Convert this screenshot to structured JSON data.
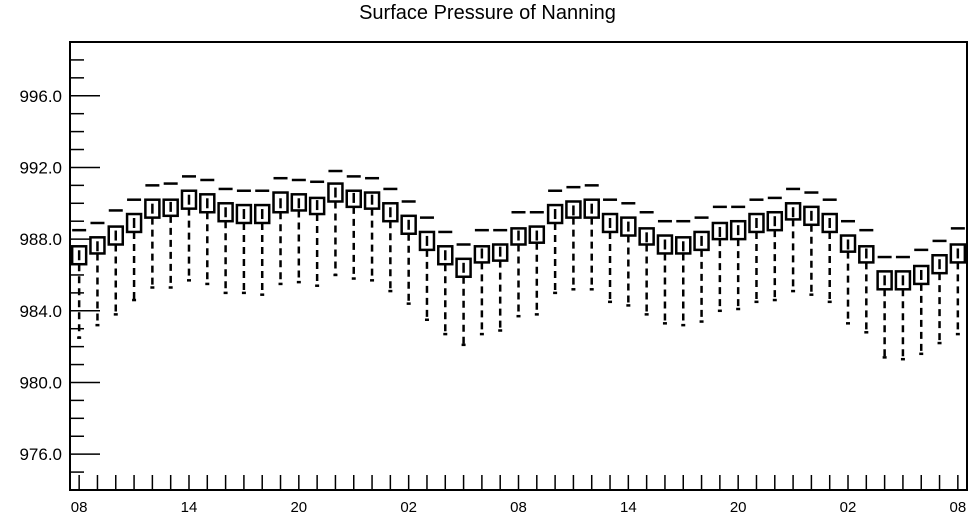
{
  "chart_data": {
    "type": "boxplot",
    "title": "Surface Pressure of Nanning",
    "xlabel": "",
    "ylabel": "",
    "ylim": [
      974.0,
      999.0
    ],
    "y_ticks": [
      "976.0",
      "980.0",
      "984.0",
      "988.0",
      "992.0",
      "996.0"
    ],
    "x_tick_labels": [
      "08",
      "14",
      "20",
      "02",
      "08",
      "14",
      "20",
      "02",
      "08"
    ],
    "x_tick_positions": [
      0,
      6,
      12,
      18,
      24,
      30,
      36,
      42,
      48
    ],
    "x_range": [
      -0.5,
      48.5
    ],
    "grid": false,
    "boxes": [
      {
        "x": 0,
        "q1": 986.6,
        "q3": 987.6,
        "med": 987.1,
        "whisker_low": 982.5,
        "whisker_high": 988.5
      },
      {
        "x": 1,
        "q1": 987.2,
        "q3": 988.1,
        "med": 987.6,
        "whisker_low": 983.2,
        "whisker_high": 988.9
      },
      {
        "x": 2,
        "q1": 987.7,
        "q3": 988.7,
        "med": 988.2,
        "whisker_low": 983.8,
        "whisker_high": 989.6
      },
      {
        "x": 3,
        "q1": 988.4,
        "q3": 989.4,
        "med": 988.9,
        "whisker_low": 984.6,
        "whisker_high": 990.2
      },
      {
        "x": 4,
        "q1": 989.2,
        "q3": 990.2,
        "med": 989.7,
        "whisker_low": 985.3,
        "whisker_high": 991.0
      },
      {
        "x": 5,
        "q1": 989.3,
        "q3": 990.2,
        "med": 989.8,
        "whisker_low": 985.3,
        "whisker_high": 991.1
      },
      {
        "x": 6,
        "q1": 989.7,
        "q3": 990.7,
        "med": 990.2,
        "whisker_low": 985.7,
        "whisker_high": 991.5
      },
      {
        "x": 7,
        "q1": 989.5,
        "q3": 990.5,
        "med": 990.0,
        "whisker_low": 985.5,
        "whisker_high": 991.3
      },
      {
        "x": 8,
        "q1": 989.0,
        "q3": 990.0,
        "med": 989.5,
        "whisker_low": 985.0,
        "whisker_high": 990.8
      },
      {
        "x": 9,
        "q1": 988.9,
        "q3": 989.9,
        "med": 989.4,
        "whisker_low": 985.0,
        "whisker_high": 990.7
      },
      {
        "x": 10,
        "q1": 988.9,
        "q3": 989.9,
        "med": 989.4,
        "whisker_low": 984.9,
        "whisker_high": 990.7
      },
      {
        "x": 11,
        "q1": 989.5,
        "q3": 990.6,
        "med": 990.0,
        "whisker_low": 985.5,
        "whisker_high": 991.4
      },
      {
        "x": 12,
        "q1": 989.6,
        "q3": 990.5,
        "med": 990.0,
        "whisker_low": 985.6,
        "whisker_high": 991.3
      },
      {
        "x": 13,
        "q1": 989.4,
        "q3": 990.3,
        "med": 989.9,
        "whisker_low": 985.4,
        "whisker_high": 991.2
      },
      {
        "x": 14,
        "q1": 990.1,
        "q3": 991.1,
        "med": 990.6,
        "whisker_low": 986.0,
        "whisker_high": 991.8
      },
      {
        "x": 15,
        "q1": 989.8,
        "q3": 990.7,
        "med": 990.3,
        "whisker_low": 985.8,
        "whisker_high": 991.5
      },
      {
        "x": 16,
        "q1": 989.7,
        "q3": 990.6,
        "med": 990.2,
        "whisker_low": 985.7,
        "whisker_high": 991.4
      },
      {
        "x": 17,
        "q1": 989.0,
        "q3": 990.0,
        "med": 989.5,
        "whisker_low": 985.1,
        "whisker_high": 990.8
      },
      {
        "x": 18,
        "q1": 988.3,
        "q3": 989.3,
        "med": 988.8,
        "whisker_low": 984.4,
        "whisker_high": 990.1
      },
      {
        "x": 19,
        "q1": 987.4,
        "q3": 988.4,
        "med": 987.9,
        "whisker_low": 983.5,
        "whisker_high": 989.2
      },
      {
        "x": 20,
        "q1": 986.6,
        "q3": 987.6,
        "med": 987.1,
        "whisker_low": 982.7,
        "whisker_high": 988.4
      },
      {
        "x": 21,
        "q1": 985.9,
        "q3": 986.9,
        "med": 986.4,
        "whisker_low": 982.1,
        "whisker_high": 987.7
      },
      {
        "x": 22,
        "q1": 986.7,
        "q3": 987.6,
        "med": 987.2,
        "whisker_low": 982.7,
        "whisker_high": 988.5
      },
      {
        "x": 23,
        "q1": 986.8,
        "q3": 987.7,
        "med": 987.3,
        "whisker_low": 982.9,
        "whisker_high": 988.5
      },
      {
        "x": 24,
        "q1": 987.7,
        "q3": 988.6,
        "med": 988.2,
        "whisker_low": 983.7,
        "whisker_high": 989.5
      },
      {
        "x": 25,
        "q1": 987.8,
        "q3": 988.7,
        "med": 988.2,
        "whisker_low": 983.8,
        "whisker_high": 989.5
      },
      {
        "x": 26,
        "q1": 988.9,
        "q3": 989.9,
        "med": 989.4,
        "whisker_low": 985.0,
        "whisker_high": 990.7
      },
      {
        "x": 27,
        "q1": 989.2,
        "q3": 990.1,
        "med": 989.6,
        "whisker_low": 985.2,
        "whisker_high": 990.9
      },
      {
        "x": 28,
        "q1": 989.2,
        "q3": 990.2,
        "med": 989.7,
        "whisker_low": 985.2,
        "whisker_high": 991.0
      },
      {
        "x": 29,
        "q1": 988.4,
        "q3": 989.4,
        "med": 988.9,
        "whisker_low": 984.5,
        "whisker_high": 990.2
      },
      {
        "x": 30,
        "q1": 988.2,
        "q3": 989.2,
        "med": 988.7,
        "whisker_low": 984.3,
        "whisker_high": 990.0
      },
      {
        "x": 31,
        "q1": 987.7,
        "q3": 988.6,
        "med": 988.1,
        "whisker_low": 983.8,
        "whisker_high": 989.5
      },
      {
        "x": 32,
        "q1": 987.2,
        "q3": 988.2,
        "med": 987.7,
        "whisker_low": 983.3,
        "whisker_high": 989.0
      },
      {
        "x": 33,
        "q1": 987.2,
        "q3": 988.1,
        "med": 987.6,
        "whisker_low": 983.2,
        "whisker_high": 989.0
      },
      {
        "x": 34,
        "q1": 987.4,
        "q3": 988.4,
        "med": 987.9,
        "whisker_low": 983.4,
        "whisker_high": 989.2
      },
      {
        "x": 35,
        "q1": 988.0,
        "q3": 988.9,
        "med": 988.4,
        "whisker_low": 984.0,
        "whisker_high": 989.8
      },
      {
        "x": 36,
        "q1": 988.0,
        "q3": 989.0,
        "med": 988.5,
        "whisker_low": 984.1,
        "whisker_high": 989.8
      },
      {
        "x": 37,
        "q1": 988.4,
        "q3": 989.4,
        "med": 988.9,
        "whisker_low": 984.5,
        "whisker_high": 990.2
      },
      {
        "x": 38,
        "q1": 988.5,
        "q3": 989.5,
        "med": 989.0,
        "whisker_low": 984.6,
        "whisker_high": 990.3
      },
      {
        "x": 39,
        "q1": 989.1,
        "q3": 990.0,
        "med": 989.5,
        "whisker_low": 985.1,
        "whisker_high": 990.8
      },
      {
        "x": 40,
        "q1": 988.8,
        "q3": 989.8,
        "med": 989.3,
        "whisker_low": 984.9,
        "whisker_high": 990.6
      },
      {
        "x": 41,
        "q1": 988.4,
        "q3": 989.4,
        "med": 988.9,
        "whisker_low": 984.5,
        "whisker_high": 990.2
      },
      {
        "x": 42,
        "q1": 987.3,
        "q3": 988.2,
        "med": 987.7,
        "whisker_low": 983.3,
        "whisker_high": 989.0
      },
      {
        "x": 43,
        "q1": 986.7,
        "q3": 987.6,
        "med": 987.2,
        "whisker_low": 982.8,
        "whisker_high": 988.5
      },
      {
        "x": 44,
        "q1": 985.2,
        "q3": 986.2,
        "med": 985.7,
        "whisker_low": 981.4,
        "whisker_high": 987.0
      },
      {
        "x": 45,
        "q1": 985.2,
        "q3": 986.2,
        "med": 985.7,
        "whisker_low": 981.3,
        "whisker_high": 987.0
      },
      {
        "x": 46,
        "q1": 985.5,
        "q3": 986.5,
        "med": 986.0,
        "whisker_low": 981.6,
        "whisker_high": 987.4
      },
      {
        "x": 47,
        "q1": 986.1,
        "q3": 987.1,
        "med": 986.6,
        "whisker_low": 982.2,
        "whisker_high": 987.9
      },
      {
        "x": 48,
        "q1": 986.7,
        "q3": 987.7,
        "med": 987.2,
        "whisker_low": 982.7,
        "whisker_high": 988.6
      }
    ]
  }
}
